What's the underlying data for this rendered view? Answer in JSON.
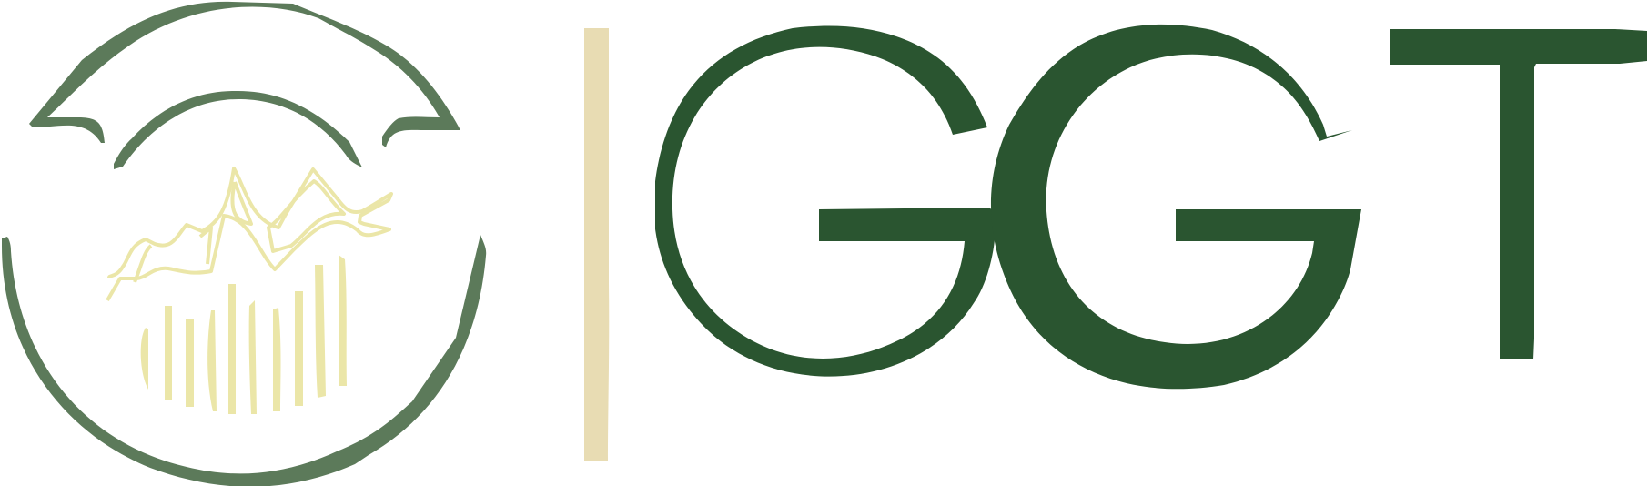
{
  "brand": {
    "name": "GGT",
    "letters": [
      "G",
      "G",
      "T"
    ]
  },
  "colors": {
    "primary_green": "#2a5530",
    "muted_green": "#5c7a5a",
    "cream": "#e8dcb3",
    "pale_yellow": "#ebe6a8",
    "background": "#ffffff"
  },
  "icons": {
    "emblem": "circular-landscape-emblem"
  }
}
